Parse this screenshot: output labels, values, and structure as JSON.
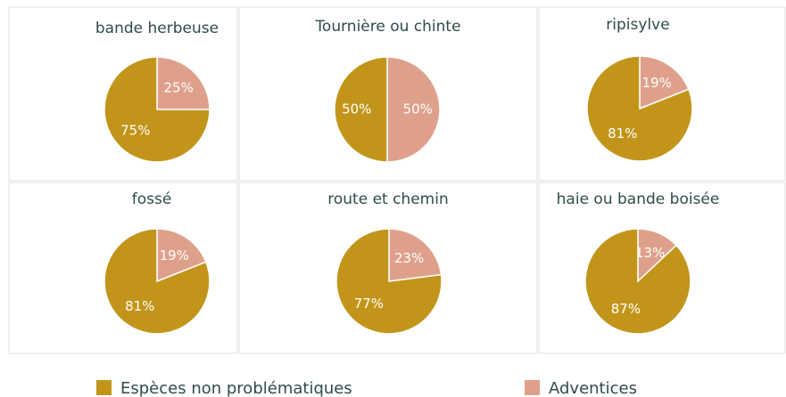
{
  "legend": [
    {
      "name": "Espèces non problématiques",
      "color": "#c2951a"
    },
    {
      "name": "Adventices",
      "color": "#dfa08b"
    }
  ],
  "chart_data": [
    {
      "type": "pie",
      "title": "bande herbeuse",
      "values": [
        75,
        25
      ],
      "value_labels": [
        "75%",
        "25%"
      ]
    },
    {
      "type": "pie",
      "title": "Tournière ou chinte",
      "values": [
        50,
        50
      ],
      "value_labels": [
        "50%",
        "50%"
      ]
    },
    {
      "type": "pie",
      "title": "ripisylve",
      "values": [
        81,
        19
      ],
      "value_labels": [
        "81%",
        "19%"
      ]
    },
    {
      "type": "pie",
      "title": "fossé",
      "values": [
        81,
        19
      ],
      "value_labels": [
        "81%",
        "19%"
      ]
    },
    {
      "type": "pie",
      "title": "route et chemin",
      "values": [
        77,
        23
      ],
      "value_labels": [
        "77%",
        "23%"
      ]
    },
    {
      "type": "pie",
      "title": "haie ou bande boisée",
      "values": [
        87,
        13
      ],
      "value_labels": [
        "87%",
        "13%"
      ]
    }
  ]
}
